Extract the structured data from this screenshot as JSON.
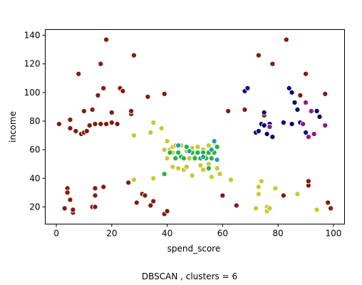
{
  "chart_data": {
    "type": "scatter",
    "xlabel": "spend_score",
    "ylabel": "income",
    "caption": "DBSCAN , clusters = 6",
    "xlim": [
      -4,
      104
    ],
    "ylim": [
      8,
      144
    ],
    "x_ticks": [
      0,
      20,
      40,
      60,
      80,
      100
    ],
    "y_ticks": [
      20,
      40,
      60,
      80,
      100,
      120,
      140
    ],
    "grid": false,
    "marker_edge_color": "#ffffff",
    "series": [
      {
        "color": "#7f1d0f",
        "points": [
          [
            1,
            78
          ],
          [
            3,
            19
          ],
          [
            4,
            33
          ],
          [
            4,
            30
          ],
          [
            5,
            25
          ],
          [
            5,
            81
          ],
          [
            5,
            75
          ],
          [
            6,
            16
          ],
          [
            6,
            18
          ],
          [
            7,
            73
          ],
          [
            8,
            113
          ],
          [
            9,
            71
          ],
          [
            10,
            87
          ],
          [
            10,
            72
          ],
          [
            11,
            73
          ],
          [
            12,
            77
          ],
          [
            13,
            20
          ],
          [
            13,
            88
          ],
          [
            14,
            33
          ],
          [
            14,
            28
          ],
          [
            14,
            20
          ],
          [
            14,
            78
          ],
          [
            15,
            98
          ],
          [
            16,
            78
          ],
          [
            16,
            120
          ],
          [
            17,
            103
          ],
          [
            17,
            34
          ],
          [
            18,
            137
          ],
          [
            18,
            78
          ],
          [
            20,
            79
          ],
          [
            20,
            86
          ],
          [
            22,
            78
          ],
          [
            23,
            103
          ],
          [
            24,
            101
          ],
          [
            26,
            37
          ],
          [
            27,
            85
          ],
          [
            27,
            87
          ],
          [
            28,
            126
          ],
          [
            29,
            23
          ],
          [
            31,
            29
          ],
          [
            32,
            28
          ],
          [
            33,
            97
          ],
          [
            34,
            21
          ],
          [
            35,
            24
          ],
          [
            39,
            99
          ],
          [
            39,
            15
          ],
          [
            40,
            17
          ],
          [
            60,
            28
          ],
          [
            62,
            87
          ],
          [
            65,
            21
          ],
          [
            68,
            88
          ],
          [
            73,
            126
          ],
          [
            75,
            84
          ],
          [
            78,
            120
          ],
          [
            82,
            28
          ],
          [
            83,
            137
          ],
          [
            88,
            98
          ],
          [
            90,
            113
          ],
          [
            91,
            35
          ],
          [
            91,
            38
          ],
          [
            97,
            99
          ],
          [
            98,
            23
          ],
          [
            99,
            19
          ]
        ]
      },
      {
        "color": "#0a0a6e",
        "points": [
          [
            68,
            101
          ],
          [
            69,
            103
          ],
          [
            72,
            72
          ],
          [
            73,
            73
          ],
          [
            74,
            78
          ],
          [
            75,
            77
          ],
          [
            75,
            86
          ],
          [
            76,
            71
          ],
          [
            77,
            78
          ],
          [
            78,
            69
          ],
          [
            82,
            79
          ],
          [
            84,
            103
          ],
          [
            85,
            78
          ],
          [
            85,
            100
          ],
          [
            86,
            93
          ],
          [
            87,
            88
          ],
          [
            88,
            79
          ],
          [
            89,
            78
          ],
          [
            90,
            72
          ],
          [
            94,
            87
          ],
          [
            95,
            83
          ]
        ]
      },
      {
        "color": "#8a1a8a",
        "points": [
          [
            77,
            76
          ],
          [
            89,
            78
          ],
          [
            90,
            93
          ],
          [
            91,
            69
          ],
          [
            92,
            87
          ],
          [
            93,
            71
          ],
          [
            97,
            77
          ]
        ]
      },
      {
        "color": "#c8c832",
        "points": [
          [
            28,
            70
          ],
          [
            28,
            39
          ],
          [
            34,
            72
          ],
          [
            35,
            79
          ],
          [
            35,
            40
          ],
          [
            38,
            75
          ],
          [
            39,
            60
          ],
          [
            40,
            66
          ],
          [
            40,
            54
          ],
          [
            41,
            60
          ],
          [
            42,
            62
          ],
          [
            42,
            58
          ],
          [
            42,
            48
          ],
          [
            43,
            63
          ],
          [
            44,
            47
          ],
          [
            45,
            63
          ],
          [
            46,
            46
          ],
          [
            47,
            48
          ],
          [
            47,
            59
          ],
          [
            48,
            60
          ],
          [
            48,
            54
          ],
          [
            49,
            61
          ],
          [
            49,
            42
          ],
          [
            50,
            58
          ],
          [
            50,
            55
          ],
          [
            51,
            62
          ],
          [
            52,
            49
          ],
          [
            53,
            60
          ],
          [
            53,
            46
          ],
          [
            54,
            57
          ],
          [
            55,
            63
          ],
          [
            55,
            50
          ],
          [
            56,
            58
          ],
          [
            56,
            41
          ],
          [
            57,
            65
          ],
          [
            58,
            47
          ],
          [
            59,
            43
          ],
          [
            63,
            39
          ],
          [
            72,
            19
          ],
          [
            73,
            29
          ],
          [
            73,
            34
          ],
          [
            74,
            38
          ],
          [
            76,
            20
          ],
          [
            76,
            17
          ],
          [
            77,
            19
          ],
          [
            79,
            33
          ],
          [
            87,
            29
          ],
          [
            94,
            18
          ]
        ]
      },
      {
        "color": "#22b14c",
        "points": [
          [
            39,
            43
          ],
          [
            41,
            58
          ],
          [
            43,
            54
          ],
          [
            44,
            58
          ],
          [
            45,
            55
          ],
          [
            46,
            54
          ],
          [
            47,
            62
          ],
          [
            49,
            58
          ],
          [
            50,
            54
          ],
          [
            51,
            58
          ],
          [
            52,
            54
          ],
          [
            53,
            58
          ],
          [
            54,
            54
          ],
          [
            55,
            58
          ],
          [
            56,
            54
          ],
          [
            57,
            58
          ],
          [
            58,
            62
          ],
          [
            55,
            47
          ]
        ]
      },
      {
        "color": "#1fa2b4",
        "points": [
          [
            44,
            63
          ],
          [
            48,
            59
          ],
          [
            53,
            55
          ],
          [
            56,
            60
          ],
          [
            57,
            66
          ],
          [
            58,
            53
          ]
        ]
      }
    ]
  }
}
